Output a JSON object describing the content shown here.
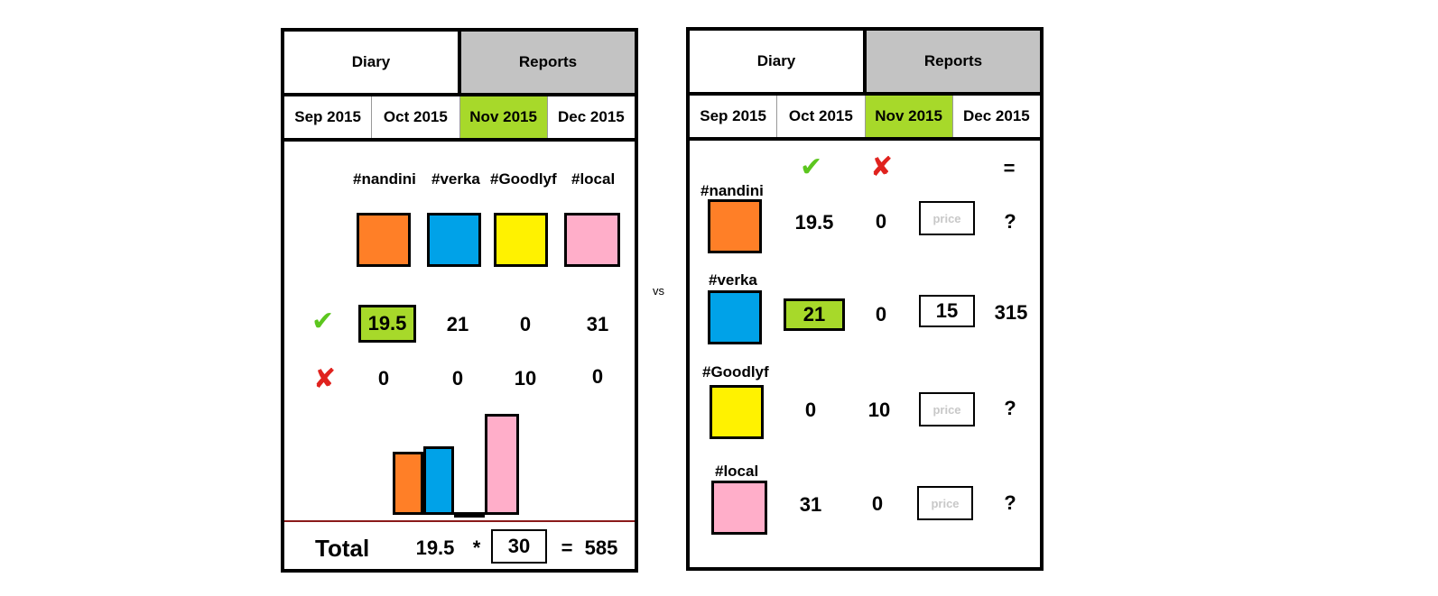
{
  "tabs": {
    "diary": "Diary",
    "reports": "Reports"
  },
  "months": [
    "Sep 2015",
    "Oct 2015",
    "Nov 2015",
    "Dec 2015"
  ],
  "separator": "vs",
  "left": {
    "brands": [
      "#nandini",
      "#verka",
      "#Goodlyf",
      "#local"
    ],
    "checked": [
      "19.5",
      "21",
      "0",
      "31"
    ],
    "crossed": [
      "0",
      "0",
      "10",
      "0"
    ],
    "total": {
      "label": "Total",
      "qty": "19.5",
      "times": "*",
      "price": "30",
      "equals": "=",
      "amount": "585"
    }
  },
  "right": {
    "equals_header": "=",
    "rows": [
      {
        "brand": "#nandini",
        "checked": "19.5",
        "crossed": "0",
        "price": "price",
        "amount": "?"
      },
      {
        "brand": "#verka",
        "checked": "21",
        "crossed": "0",
        "price": "15",
        "amount": "315"
      },
      {
        "brand": "#Goodlyf",
        "checked": "0",
        "crossed": "10",
        "price": "price",
        "amount": "?"
      },
      {
        "brand": "#local",
        "checked": "31",
        "crossed": "0",
        "price": "price",
        "amount": "?"
      }
    ]
  },
  "colors": {
    "nandini": "#ff7f27",
    "verka": "#00a2e8",
    "goodlyf": "#fff200",
    "local": "#ffaec9",
    "active": "#a7d92a",
    "tab_inactive": "#c3c3c3"
  },
  "chart_data": {
    "type": "bar",
    "categories": [
      "#nandini",
      "#verka",
      "#Goodlyf",
      "#local"
    ],
    "values": [
      19.5,
      21,
      0,
      31
    ]
  }
}
